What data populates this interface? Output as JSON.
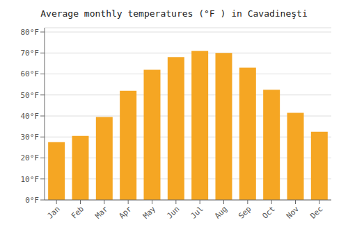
{
  "chart_data": {
    "type": "bar",
    "title": "Average monthly temperatures (°F ) in Cavadineşti",
    "categories": [
      "Jan",
      "Feb",
      "Mar",
      "Apr",
      "May",
      "Jun",
      "Jul",
      "Aug",
      "Sep",
      "Oct",
      "Nov",
      "Dec"
    ],
    "values": [
      27.5,
      30.5,
      39.5,
      52.0,
      62.0,
      68.0,
      71.0,
      70.0,
      63.0,
      52.5,
      41.5,
      32.5
    ],
    "color": "#F5A623",
    "ylim": [
      0,
      82
    ],
    "yticks": [
      {
        "value": 0,
        "label": "0°F"
      },
      {
        "value": 10,
        "label": "10°F"
      },
      {
        "value": 20,
        "label": "20°F"
      },
      {
        "value": 30,
        "label": "30°F"
      },
      {
        "value": 40,
        "label": "40°F"
      },
      {
        "value": 50,
        "label": "50°F"
      },
      {
        "value": 60,
        "label": "60°F"
      },
      {
        "value": 70,
        "label": "70°F"
      },
      {
        "value": 80,
        "label": "80°F"
      }
    ],
    "grid": true
  }
}
